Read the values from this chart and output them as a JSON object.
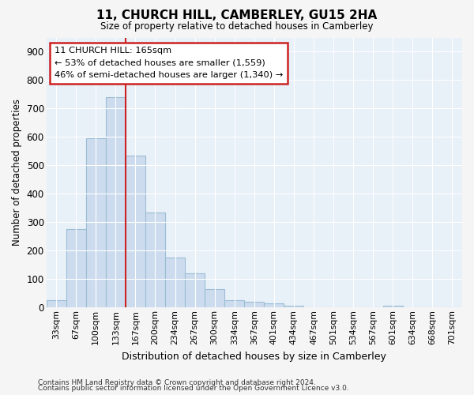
{
  "title": "11, CHURCH HILL, CAMBERLEY, GU15 2HA",
  "subtitle": "Size of property relative to detached houses in Camberley",
  "xlabel": "Distribution of detached houses by size in Camberley",
  "ylabel": "Number of detached properties",
  "categories": [
    "33sqm",
    "67sqm",
    "100sqm",
    "133sqm",
    "167sqm",
    "200sqm",
    "234sqm",
    "267sqm",
    "300sqm",
    "334sqm",
    "367sqm",
    "401sqm",
    "434sqm",
    "467sqm",
    "501sqm",
    "534sqm",
    "567sqm",
    "601sqm",
    "634sqm",
    "668sqm",
    "701sqm"
  ],
  "values": [
    25,
    275,
    595,
    740,
    535,
    335,
    175,
    120,
    65,
    25,
    20,
    15,
    5,
    0,
    0,
    0,
    0,
    5,
    0,
    0,
    0
  ],
  "bar_color": "#ccdcee",
  "bar_edge_color": "#9bbdd4",
  "background_color": "#e8f0f8",
  "grid_color": "#ffffff",
  "vline_color": "#cc2222",
  "vline_index": 4,
  "annotation_text": "11 CHURCH HILL: 165sqm\n← 53% of detached houses are smaller (1,559)\n46% of semi-detached houses are larger (1,340) →",
  "annotation_box_facecolor": "#ffffff",
  "annotation_box_edgecolor": "#cc2222",
  "ylim": [
    0,
    950
  ],
  "yticks": [
    0,
    100,
    200,
    300,
    400,
    500,
    600,
    700,
    800,
    900
  ],
  "footer1": "Contains HM Land Registry data © Crown copyright and database right 2024.",
  "footer2": "Contains public sector information licensed under the Open Government Licence v3.0.",
  "fig_facecolor": "#f5f5f5"
}
